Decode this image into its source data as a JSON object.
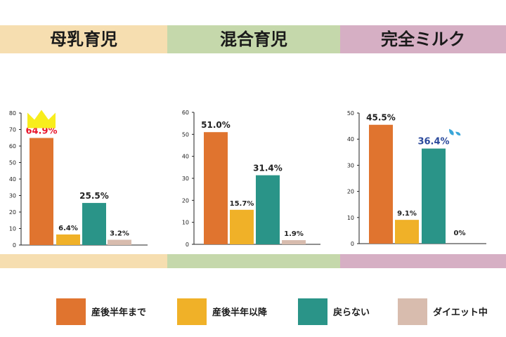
{
  "colors": {
    "breast": "#f6deb0",
    "mixed": "#c5d8ab",
    "formula": "#d6afc4",
    "series": [
      "#e0742f",
      "#f0b128",
      "#2a9488",
      "#d8bcae"
    ],
    "highlight_red": "#e8152b",
    "highlight_blue": "#2b4a9c"
  },
  "headers": [
    "母乳育児",
    "混合育児",
    "完全ミルク"
  ],
  "legend": [
    "産後半年まで",
    "産後半年以降",
    "戻らない",
    "ダイエット中"
  ],
  "chart_data": [
    {
      "type": "bar",
      "title": "母乳育児",
      "categories": [
        "産後半年まで",
        "産後半年以降",
        "戻らない",
        "ダイエット中"
      ],
      "values": [
        64.9,
        6.4,
        25.5,
        3.2
      ],
      "value_labels": [
        "64.9%",
        "6.4%",
        "25.5%",
        "3.2%"
      ],
      "ylim": [
        0,
        80
      ],
      "yticks": [
        0,
        10,
        20,
        30,
        40,
        50,
        60,
        70,
        80
      ],
      "highlight": {
        "index": 0,
        "color": "red",
        "icon": "crown-icon"
      }
    },
    {
      "type": "bar",
      "title": "混合育児",
      "categories": [
        "産後半年まで",
        "産後半年以降",
        "戻らない",
        "ダイエット中"
      ],
      "values": [
        51.0,
        15.7,
        31.4,
        1.9
      ],
      "value_labels": [
        "51.0%",
        "15.7%",
        "31.4%",
        "1.9%"
      ],
      "ylim": [
        0,
        60
      ],
      "yticks": [
        0,
        10,
        20,
        30,
        40,
        50,
        60
      ]
    },
    {
      "type": "bar",
      "title": "完全ミルク",
      "categories": [
        "産後半年まで",
        "産後半年以降",
        "戻らない",
        "ダイエット中"
      ],
      "values": [
        45.5,
        9.1,
        36.4,
        0
      ],
      "value_labels": [
        "45.5%",
        "9.1%",
        "36.4%",
        "0%"
      ],
      "ylim": [
        0,
        50
      ],
      "yticks": [
        0,
        10,
        20,
        30,
        40,
        50
      ],
      "highlight": {
        "index": 2,
        "color": "blue",
        "icon": "sweat-drop-icon"
      }
    }
  ]
}
